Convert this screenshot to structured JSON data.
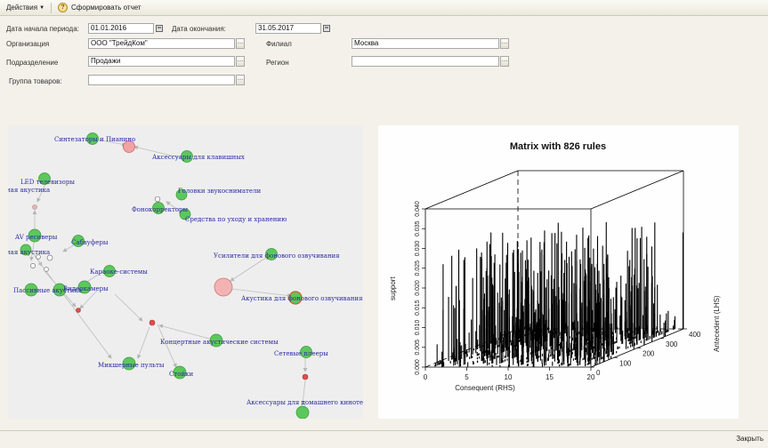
{
  "toolbar": {
    "actions_label": "Действия",
    "generate_label": "Сформировать отчет"
  },
  "form": {
    "period_start_label": "Дата начала периода:",
    "period_start_value": "01.01.2016",
    "period_end_label": "Дата окончания:",
    "period_end_value": "31.05.2017",
    "organization_label": "Организация",
    "organization_value": "ООО \"ТрейдКом\"",
    "branch_label": "Филиал",
    "branch_value": "Москва",
    "department_label": "Подразделение",
    "department_value": "Продажи",
    "region_label": "Регион",
    "region_value": "",
    "product_group_label": "Группа товаров:",
    "product_group_value": ""
  },
  "graph": {
    "labels": [
      "Синтезаторы и Пианино",
      "Аксессуары для клавишных",
      "LED телевизоры",
      "ная акустика",
      "Головки звукосниматели",
      "Фонокорректоры",
      "Средства по уходу и хранению",
      "AV ресиверы",
      "Сабвуферы",
      "ная акустика",
      "Караоке-системы",
      "Усилители для фонового озвучивания",
      "Пассивные акустика",
      "Видеокамеры",
      "Акустика для фонового озвучивания",
      "Концертные акустические системы",
      "Микшерные пульты",
      "Стойки",
      "Сетевые плееры",
      "Аксессуары для домашнего кинотеатра"
    ]
  },
  "chart_data": {
    "type": "scatter",
    "title": "Matrix with 826 rules",
    "xlabel": "Consequent (RHS)",
    "ylabel": "Antecedent (LHS)",
    "zlabel": "support",
    "x_ticks": [
      "0",
      "5",
      "10",
      "15",
      "20"
    ],
    "y_ticks": [
      "0",
      "100",
      "200",
      "300",
      "400"
    ],
    "z_ticks": [
      "0.000",
      "0.005",
      "0.010",
      "0.015",
      "0.020",
      "0.025",
      "0.030",
      "0.035",
      "0.040"
    ],
    "xlim": [
      0,
      20
    ],
    "ylim": [
      0,
      400
    ],
    "zlim": [
      0,
      0.04
    ]
  },
  "status": {
    "close_label": "Закрыть"
  }
}
